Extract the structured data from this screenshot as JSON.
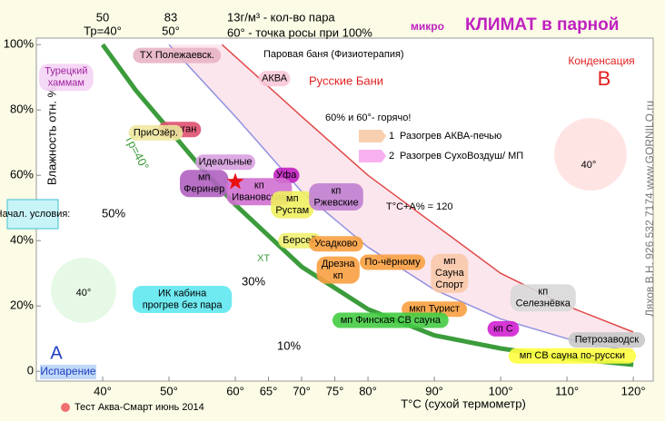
{
  "header": {
    "title_prefix": "микро",
    "title": "КЛИМАТ в парной",
    "top_left_1": "50",
    "top_left_2": "Тр=40°",
    "top_mid_1": "83",
    "top_mid_2": "50°",
    "steam_note": "13г/м³ - кол-во пара",
    "dew_note": "60° - точка росы при 100%",
    "author": "Ляхов В.Н.   926 532 7174   www.GORNILO.ru",
    "condensation": "Конденсация",
    "point_b": "B",
    "point_a": "A",
    "evaporation": "Испарение",
    "start": "Начал. условия:",
    "steam_bath": "Паровая баня (Физиотерапия)",
    "russian": "Русские Бани",
    "legend_1_num": "1",
    "legend_1": "Разогрев АКВА-печью",
    "legend_2_num": "2",
    "legend_2": "Разогрев СухоВоздуш/ МП",
    "formula": "T°C+A% = 120",
    "mid_50": "50%",
    "mid_30": "30%",
    "mid_10": "10%",
    "xt": "ХТ",
    "test": "Тест Аква-Смарт июнь 2014",
    "figure_a": "40°",
    "figure_b": "40°"
  },
  "chart_data": {
    "type": "line",
    "xlabel": "T°C (сухой термометр)",
    "ylabel": "Влажность отн. %",
    "xlim": [
      30,
      123
    ],
    "ylim": [
      -3,
      102
    ],
    "xticks": [
      {
        "value": 40,
        "label": "40°"
      },
      {
        "value": 50,
        "label": "50°"
      },
      {
        "value": 60,
        "label": "60°"
      },
      {
        "value": 65,
        "label": "65°"
      },
      {
        "value": 70,
        "label": "70°"
      },
      {
        "value": 75,
        "label": "75°"
      },
      {
        "value": 80,
        "label": "80°"
      },
      {
        "value": 90,
        "label": "90°"
      },
      {
        "value": 100,
        "label": "100°"
      },
      {
        "value": 110,
        "label": "110°"
      },
      {
        "value": 120,
        "label": "120°"
      }
    ],
    "yticks": [
      0,
      {
        "value": 20,
        "label": "20%"
      },
      {
        "value": 40,
        "label": "40%"
      },
      {
        "value": 60,
        "label": "60%"
      },
      {
        "value": 80,
        "label": "80%"
      },
      {
        "value": 100,
        "label": "100%"
      }
    ],
    "series": [
      {
        "name": "Тр=40°",
        "color": "#3c9c3c",
        "x": [
          40,
          45,
          50,
          55,
          60,
          70,
          80,
          90,
          100,
          110,
          120
        ],
        "values": [
          100,
          86,
          74,
          62,
          51,
          32,
          19,
          11,
          7,
          4,
          2
        ]
      },
      {
        "color": "#e04848",
        "x": [
          58,
          70,
          80,
          90,
          100,
          110,
          120
        ],
        "values": [
          100,
          78,
          60,
          45,
          30,
          20,
          12
        ]
      },
      {
        "color": "#9090e0",
        "x": [
          50,
          60,
          70,
          80,
          90,
          100,
          110,
          120
        ],
        "values": [
          100,
          78,
          55,
          38,
          25,
          16,
          10,
          6
        ]
      }
    ],
    "hot_point": {
      "x": 60,
      "y": 58,
      "label": "60% и 60°- горячо!"
    },
    "labels": [
      {
        "lines": [
          "Турецкий",
          "хаммам"
        ],
        "x": 34.5,
        "y": 90,
        "fill": "#f4d4f4",
        "color": "#a020a0"
      },
      {
        "lines": [
          "ТХ Полежаевск."
        ],
        "x": 51.2,
        "y": 96.7,
        "fill": "#e8b4c4",
        "color": "#000000"
      },
      {
        "lines": [
          "АКВА"
        ],
        "x": 65.9,
        "y": 89.6,
        "fill": "#f8c8d8",
        "color": "#000000"
      },
      {
        "lines": [
          "Кашган"
        ],
        "x": 51.6,
        "y": 74,
        "fill": "#e05070",
        "color": "#000000"
      },
      {
        "lines": [
          "ПриОзёр."
        ],
        "x": 48,
        "y": 73,
        "fill": "#f0e8a0",
        "color": "#000000"
      },
      {
        "lines": [
          "мп",
          "Феринер"
        ],
        "x": 55.3,
        "y": 57.5,
        "fill": "#b060c0",
        "color": "#000000"
      },
      {
        "lines": [
          "Идеальные"
        ],
        "x": 58.5,
        "y": 64,
        "fill": "#d8a0e0",
        "color": "#000000"
      },
      {
        "lines": [
          "Уфа"
        ],
        "x": 67.7,
        "y": 60,
        "fill": "#c020c0",
        "color": "#000000"
      },
      {
        "lines": [
          "кп",
          "Ивановские"
        ],
        "x": 63.6,
        "y": 55,
        "fill": "#d070d0",
        "color": "#000000"
      },
      {
        "lines": [
          "мп",
          "Рустам"
        ],
        "x": 68.6,
        "y": 51,
        "fill": "#f0f060",
        "color": "#000000"
      },
      {
        "lines": [
          "кп",
          "Ржевские"
        ],
        "x": 75.2,
        "y": 53.4,
        "fill": "#c080d0",
        "color": "#000000"
      },
      {
        "lines": [
          "Берсей"
        ],
        "x": 69.7,
        "y": 40,
        "fill": "#f0f070",
        "color": "#000000"
      },
      {
        "lines": [
          "Усадково"
        ],
        "x": 75.2,
        "y": 39,
        "fill": "#f8a040",
        "color": "#000000"
      },
      {
        "lines": [
          "Дрезна",
          "кп"
        ],
        "x": 75.5,
        "y": 31,
        "fill": "#f8a040",
        "color": "#000000"
      },
      {
        "lines": [
          "По-чёрному"
        ],
        "x": 83.7,
        "y": 33.4,
        "fill": "#f8a040",
        "color": "#000000"
      },
      {
        "lines": [
          "мп",
          "Сауна",
          "Спорт"
        ],
        "x": 92.3,
        "y": 30,
        "fill": "#f8c8a8",
        "color": "#000000"
      },
      {
        "lines": [
          "кп",
          "Селезнёвка"
        ],
        "x": 106.4,
        "y": 22.5,
        "fill": "#d8d8d8",
        "color": "#000000"
      },
      {
        "lines": [
          "мкп Турист"
        ],
        "x": 90,
        "y": 19,
        "fill": "#f8a040",
        "color": "#000000"
      },
      {
        "lines": [
          "кп С"
        ],
        "x": 100.4,
        "y": 13,
        "fill": "#d020d0",
        "color": "#000000"
      },
      {
        "lines": [
          "Петрозаводск"
        ],
        "x": 116,
        "y": 9.6,
        "fill": "#c8c8c8",
        "color": "#000000"
      },
      {
        "lines": [
          "мп Финская СВ сауна"
        ],
        "x": 83.4,
        "y": 15.6,
        "fill": "#44cc44",
        "color": "#000000"
      },
      {
        "lines": [
          "мп СВ сауна по-русски"
        ],
        "x": 110.8,
        "y": 4.7,
        "fill": "#ffff40",
        "color": "#000000"
      },
      {
        "lines": [
          "ИК кабина",
          "прогрев без пара"
        ],
        "x": 52,
        "y": 22,
        "fill": "#60e8f0",
        "color": "#000000"
      }
    ]
  }
}
